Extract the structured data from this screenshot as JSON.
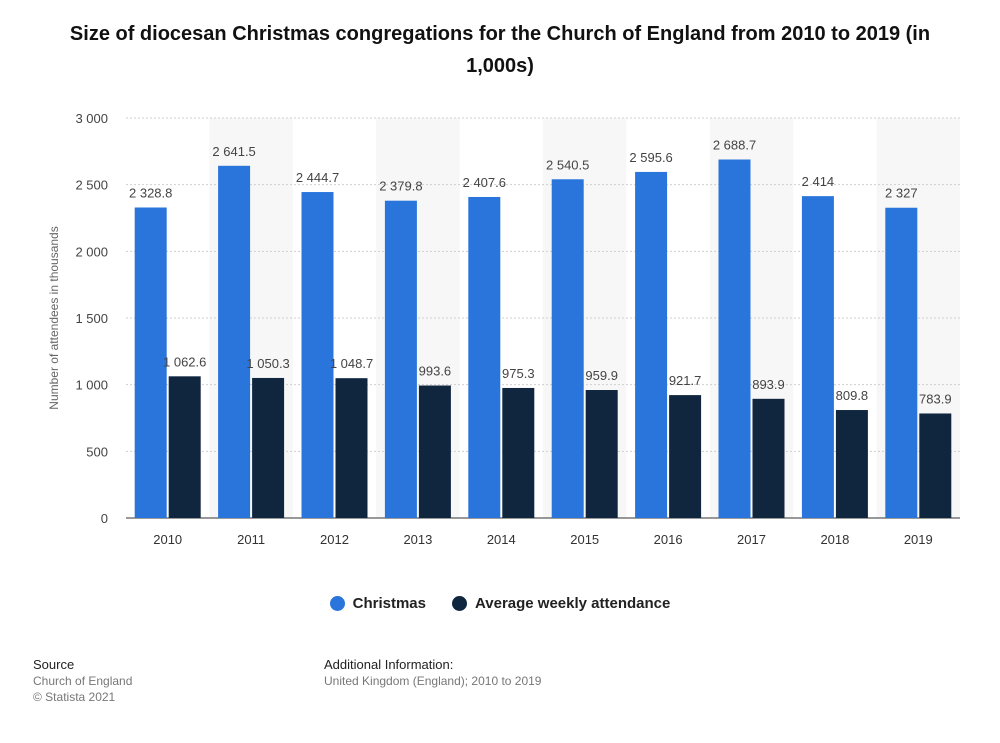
{
  "chart_data": {
    "type": "bar",
    "title": "Size of diocesan Christmas congregations for the Church of England from 2010 to 2019 (in 1,000s)",
    "ylabel": "Number of attendees in thousands",
    "xlabel": "",
    "ylim": [
      0,
      3000
    ],
    "yticks": [
      0,
      500,
      1000,
      1500,
      2000,
      2500,
      3000
    ],
    "ytick_labels": [
      "0",
      "500",
      "1 000",
      "1 500",
      "2 000",
      "2 500",
      "3 000"
    ],
    "categories": [
      "2010",
      "2011",
      "2012",
      "2013",
      "2014",
      "2015",
      "2016",
      "2017",
      "2018",
      "2019"
    ],
    "series": [
      {
        "name": "Christmas",
        "color": "#2a75dc",
        "values": [
          2328.8,
          2641.5,
          2444.7,
          2379.8,
          2407.6,
          2540.5,
          2595.6,
          2688.7,
          2414,
          2327
        ],
        "labels": [
          "2 328.8",
          "2 641.5",
          "2 444.7",
          "2 379.8",
          "2 407.6",
          "2 540.5",
          "2 595.6",
          "2 688.7",
          "2 414",
          "2 327"
        ]
      },
      {
        "name": "Average weekly attendance",
        "color": "#10263f",
        "values": [
          1062.6,
          1050.3,
          1048.7,
          993.6,
          975.3,
          959.9,
          921.7,
          893.9,
          809.8,
          783.9
        ],
        "labels": [
          "1 062.6",
          "1 050.3",
          "1 048.7",
          "993.6",
          "975.3",
          "959.9",
          "921.7",
          "893.9",
          "809.8",
          "783.9"
        ]
      }
    ],
    "legend_position": "bottom",
    "grid": true
  },
  "footer": {
    "source_heading": "Source",
    "source_lines": [
      "Church of England",
      "© Statista 2021"
    ],
    "info_heading": "Additional Information:",
    "info_text": "United Kingdom (England); 2010 to 2019"
  }
}
